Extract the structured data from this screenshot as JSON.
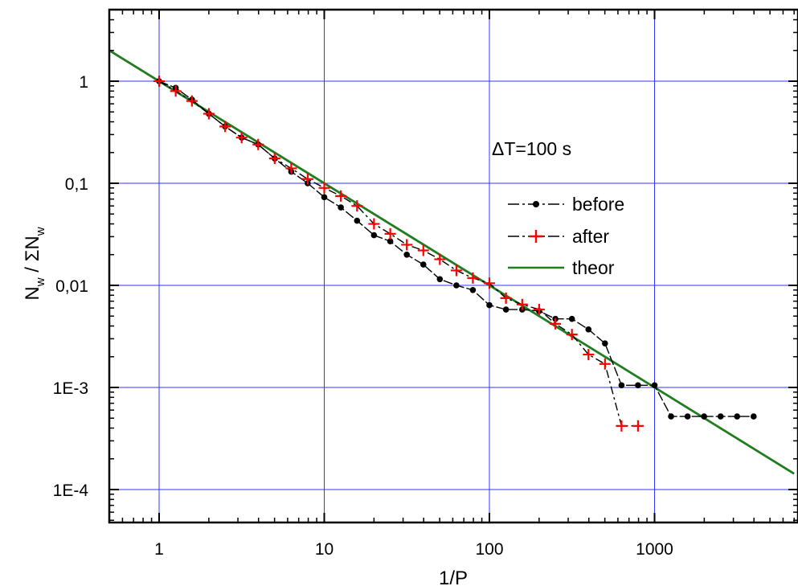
{
  "chart_data": {
    "type": "scatter",
    "x_scale": "log",
    "y_scale": "log",
    "xlim": [
      0.5,
      7000
    ],
    "ylim": [
      5e-05,
      5
    ],
    "grid": true,
    "colors": {
      "grid": "#3333ff",
      "before": "#000000",
      "after": "#ff0000",
      "theor": "#1e7d1e"
    },
    "xlabel": "1/P",
    "ylabel": "N_w / ΣN_w",
    "ylabel_parts": {
      "n": "N",
      "sub1": "w",
      "slash": " / ΣN",
      "sub2": "w"
    },
    "x_ticks": [
      {
        "value": 1,
        "label": "1"
      },
      {
        "value": 10,
        "label": "10"
      },
      {
        "value": 100,
        "label": "100"
      },
      {
        "value": 1000,
        "label": "1000"
      }
    ],
    "y_ticks": [
      {
        "value": 1,
        "label": "1"
      },
      {
        "value": 0.1,
        "label": "0,1"
      },
      {
        "value": 0.01,
        "label": "0,01"
      },
      {
        "value": 0.001,
        "label": "1E-3"
      },
      {
        "value": 0.0001,
        "label": "1E-4"
      }
    ],
    "annotation": "ΔT=100 s",
    "legend_position": "right",
    "series": [
      {
        "name": "before",
        "style": "dot-dash",
        "x": [
          1,
          1.26,
          1.58,
          2,
          2.51,
          3.16,
          3.98,
          5.01,
          6.31,
          7.94,
          10,
          12.6,
          15.8,
          20,
          25.1,
          31.6,
          39.8,
          50.1,
          63.1,
          79.4,
          100,
          126,
          158,
          200,
          251,
          316,
          398,
          501,
          631,
          794,
          1000,
          1259,
          1585,
          1995,
          2512,
          3162,
          3981
        ],
        "y": [
          1.0,
          0.86,
          0.66,
          0.48,
          0.36,
          0.28,
          0.24,
          0.175,
          0.13,
          0.1,
          0.073,
          0.058,
          0.043,
          0.031,
          0.027,
          0.02,
          0.016,
          0.0115,
          0.01,
          0.009,
          0.0064,
          0.0058,
          0.0058,
          0.0056,
          0.0047,
          0.0047,
          0.0037,
          0.0027,
          0.00105,
          0.00105,
          0.00105,
          0.00052,
          0.00052,
          0.00052,
          0.00052,
          0.00052,
          0.00052
        ]
      },
      {
        "name": "after",
        "style": "plus-dashdot",
        "x": [
          1,
          1.26,
          1.58,
          2,
          2.51,
          3.16,
          3.98,
          5.01,
          6.31,
          7.94,
          10,
          12.6,
          15.8,
          20,
          25.1,
          31.6,
          39.8,
          50.1,
          63.1,
          79.4,
          100,
          126,
          158,
          200,
          251,
          316,
          398,
          501,
          631,
          794
        ],
        "y": [
          1.0,
          0.8,
          0.64,
          0.48,
          0.36,
          0.28,
          0.24,
          0.175,
          0.14,
          0.11,
          0.09,
          0.075,
          0.06,
          0.04,
          0.032,
          0.025,
          0.022,
          0.018,
          0.014,
          0.0118,
          0.0105,
          0.0075,
          0.0065,
          0.0058,
          0.0042,
          0.0033,
          0.0021,
          0.0017,
          0.00042,
          0.00042
        ]
      },
      {
        "name": "theor",
        "style": "line",
        "x": [
          0.5,
          7000
        ],
        "y": [
          2.0,
          0.000143
        ]
      }
    ]
  }
}
